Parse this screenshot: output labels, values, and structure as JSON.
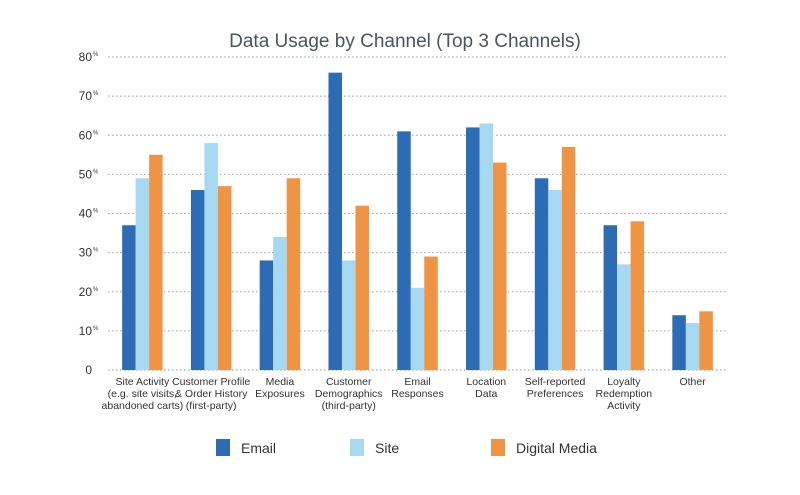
{
  "chart_data": {
    "type": "bar",
    "title": "Data Usage by Channel (Top 3 Channels)",
    "xlabel": "",
    "ylabel": "",
    "ylim": [
      0,
      80
    ],
    "y_ticks": [
      0,
      10,
      20,
      30,
      40,
      50,
      60,
      70,
      80
    ],
    "y_tick_suffix": "%",
    "grid": true,
    "legend_position": "bottom",
    "categories": [
      [
        "Site Activity",
        "(e.g. site visits,",
        "abandoned carts)"
      ],
      [
        "Customer Profile",
        "& Order History",
        "(first-party)"
      ],
      [
        "Media",
        "Exposures"
      ],
      [
        "Customer",
        "Demographics",
        "(third-party)"
      ],
      [
        "Email",
        "Responses"
      ],
      [
        "Location",
        "Data"
      ],
      [
        "Self-reported",
        "Preferences"
      ],
      [
        "Loyalty",
        "Redemption",
        "Activity"
      ],
      [
        "Other"
      ]
    ],
    "series": [
      {
        "name": "Email",
        "color": "#2d6cb4",
        "values": [
          37,
          46,
          28,
          76,
          61,
          62,
          49,
          37,
          14
        ]
      },
      {
        "name": "Site",
        "color": "#a6d8f2",
        "values": [
          49,
          58,
          34,
          28,
          21,
          63,
          46,
          27,
          12
        ]
      },
      {
        "name": "Digital Media",
        "color": "#ee9444",
        "values": [
          55,
          47,
          49,
          42,
          29,
          53,
          57,
          38,
          15
        ]
      }
    ]
  }
}
